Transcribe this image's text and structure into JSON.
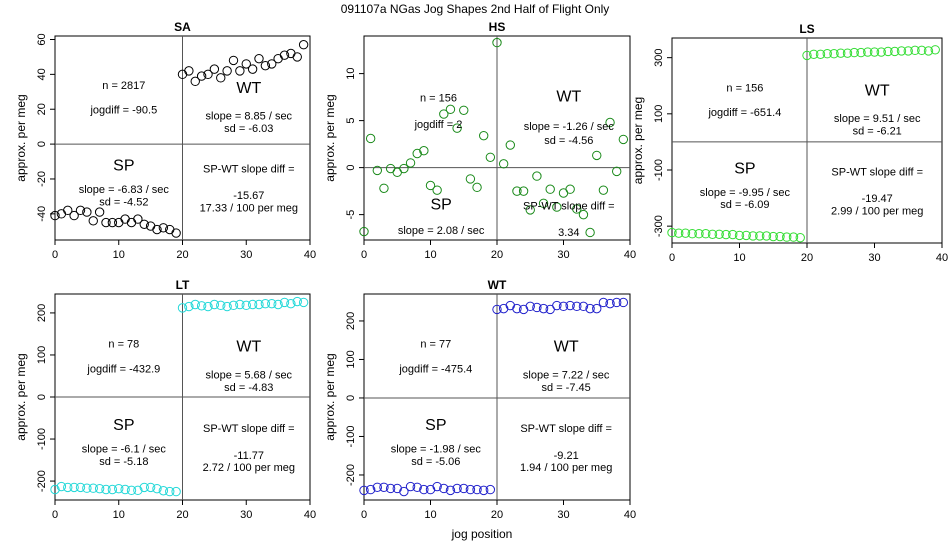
{
  "title": "091107a   NGas Jog Shapes 2nd Half of Flight Only",
  "xlabel": "jog position",
  "ylabel": "approx. per meg",
  "chart_data": [
    {
      "type": "scatter",
      "panel": "SA",
      "color": "#000000",
      "xlim": [
        0,
        40
      ],
      "ylim": [
        -55,
        62
      ],
      "xticks": [
        0,
        10,
        20,
        30,
        40
      ],
      "yticks": [
        -40,
        -20,
        0,
        20,
        40,
        60
      ],
      "x": [
        0,
        1,
        2,
        3,
        4,
        5,
        6,
        7,
        8,
        9,
        10,
        11,
        12,
        13,
        14,
        15,
        16,
        17,
        18,
        19,
        20,
        21,
        22,
        23,
        24,
        25,
        26,
        27,
        28,
        29,
        30,
        31,
        32,
        33,
        34,
        35,
        36,
        37,
        38,
        39
      ],
      "y": [
        -41,
        -40,
        -38,
        -41,
        -38,
        -39,
        -44,
        -39,
        -45,
        -45,
        -45,
        -43,
        -45,
        -43,
        -46,
        -47,
        -49,
        -48,
        -49,
        -51,
        40,
        42,
        36,
        39,
        40,
        43,
        38,
        42,
        48,
        42,
        46,
        43,
        49,
        45,
        46,
        49,
        51,
        52,
        50,
        57
      ],
      "labels": {
        "n": "n = 2817",
        "jogdiff": "jogdiff = -90.5",
        "wt": "WT",
        "wt_slope": "slope = 8.85 / sec",
        "wt_sd": "sd = -6.03",
        "sp": "SP",
        "sp_slope": "slope = -6.83 / sec",
        "sp_sd": "sd = -4.52",
        "diff_label": "SP-WT slope diff =",
        "diff_value": "-15.67",
        "per_meg": "17.33 / 100 per meg"
      }
    },
    {
      "type": "scatter",
      "panel": "HS",
      "color": "#1a8a1a",
      "xlim": [
        0,
        40
      ],
      "ylim": [
        -7.7,
        14
      ],
      "xticks": [
        0,
        10,
        20,
        30,
        40
      ],
      "yticks": [
        -5,
        0,
        5,
        10
      ],
      "x": [
        0,
        1,
        2,
        3,
        4,
        5,
        6,
        7,
        8,
        9,
        10,
        11,
        12,
        13,
        14,
        15,
        16,
        17,
        18,
        19,
        20,
        21,
        22,
        23,
        24,
        25,
        26,
        27,
        28,
        29,
        30,
        31,
        32,
        33,
        34,
        35,
        36,
        37,
        38,
        39
      ],
      "y": [
        -6.8,
        3.1,
        -0.3,
        -2.2,
        -0.1,
        -0.5,
        -0.1,
        0.5,
        1.5,
        1.8,
        -1.9,
        -2.4,
        5.7,
        6.2,
        4.2,
        6.1,
        -1.2,
        -2.1,
        3.4,
        1.1,
        13.3,
        0.4,
        2.4,
        -2.5,
        -2.5,
        -4.5,
        -0.9,
        -3.8,
        -2.3,
        -4.2,
        -2.7,
        -2.3,
        -4.4,
        -5.0,
        -6.9,
        1.3,
        -2.4,
        4.8,
        -0.4,
        3.0
      ],
      "labels": {
        "n": "n = 156",
        "jogdiff": "jogdiff = 2",
        "wt": "WT",
        "wt_slope": "slope = -1.26 / sec",
        "wt_sd": "sd = -4.56",
        "sp": "SP",
        "sp_slope": "slope = 2.08 / sec",
        "sp_sd": "",
        "diff_label": "SP-WT slope diff =",
        "diff_value": "3.34",
        "per_meg": ""
      }
    },
    {
      "type": "scatter",
      "panel": "LS",
      "color": "#33dd33",
      "xlim": [
        0,
        40
      ],
      "ylim": [
        -360,
        370
      ],
      "xticks": [
        0,
        10,
        20,
        30,
        40
      ],
      "yticks": [
        -300,
        -100,
        100,
        300
      ],
      "x": [
        0,
        1,
        2,
        3,
        4,
        5,
        6,
        7,
        8,
        9,
        10,
        11,
        12,
        13,
        14,
        15,
        16,
        17,
        18,
        19,
        20,
        21,
        22,
        23,
        24,
        25,
        26,
        27,
        28,
        29,
        30,
        31,
        32,
        33,
        34,
        35,
        36,
        37,
        38,
        39
      ],
      "y": [
        -323,
        -325,
        -325,
        -327,
        -327,
        -327,
        -329,
        -329,
        -330,
        -330,
        -333,
        -333,
        -335,
        -335,
        -335,
        -337,
        -337,
        -339,
        -339,
        -341,
        308,
        312,
        312,
        314,
        314,
        316,
        316,
        318,
        318,
        320,
        320,
        320,
        322,
        322,
        324,
        324,
        326,
        326,
        324,
        328
      ],
      "labels": {
        "n": "n = 156",
        "jogdiff": "jogdiff = -651.4",
        "wt": "WT",
        "wt_slope": "slope = 9.51 / sec",
        "wt_sd": "sd = -6.21",
        "sp": "SP",
        "sp_slope": "slope = -9.95 / sec",
        "sp_sd": "sd = -6.09",
        "diff_label": "SP-WT slope diff =",
        "diff_value": "-19.47",
        "per_meg": "2.99 / 100 per meg"
      }
    },
    {
      "type": "scatter",
      "panel": "LT",
      "color": "#22d8d8",
      "xlim": [
        0,
        40
      ],
      "ylim": [
        -245,
        245
      ],
      "xticks": [
        0,
        10,
        20,
        30,
        40
      ],
      "yticks": [
        -200,
        -100,
        0,
        100,
        200
      ],
      "x": [
        0,
        1,
        2,
        3,
        4,
        5,
        6,
        7,
        8,
        9,
        10,
        11,
        12,
        13,
        14,
        15,
        16,
        17,
        18,
        19,
        20,
        21,
        22,
        23,
        24,
        25,
        26,
        27,
        28,
        29,
        30,
        31,
        32,
        33,
        34,
        35,
        36,
        37,
        38,
        39
      ],
      "y": [
        -220,
        -213,
        -215,
        -215,
        -215,
        -217,
        -217,
        -218,
        -220,
        -220,
        -218,
        -220,
        -222,
        -222,
        -215,
        -215,
        -218,
        -223,
        -225,
        -225,
        212,
        215,
        220,
        217,
        215,
        220,
        218,
        215,
        218,
        220,
        218,
        220,
        220,
        222,
        222,
        220,
        225,
        222,
        227,
        225
      ],
      "labels": {
        "n": "n = 78",
        "jogdiff": "jogdiff = -432.9",
        "wt": "WT",
        "wt_slope": "slope = 5.68 / sec",
        "wt_sd": "sd = -4.83",
        "sp": "SP",
        "sp_slope": "slope = -6.1 / sec",
        "sp_sd": "sd = -5.18",
        "diff_label": "SP-WT slope diff =",
        "diff_value": "-11.77",
        "per_meg": "2.72 / 100 per meg"
      }
    },
    {
      "type": "scatter",
      "panel": "WT",
      "color": "#2222cc",
      "xlim": [
        0,
        40
      ],
      "ylim": [
        -265,
        270
      ],
      "xticks": [
        0,
        10,
        20,
        30,
        40
      ],
      "yticks": [
        -200,
        -100,
        0,
        100,
        200
      ],
      "x": [
        0,
        1,
        2,
        3,
        4,
        5,
        6,
        7,
        8,
        9,
        10,
        11,
        12,
        13,
        14,
        15,
        16,
        17,
        18,
        19,
        20,
        21,
        22,
        23,
        24,
        25,
        26,
        27,
        28,
        29,
        30,
        31,
        32,
        33,
        34,
        35,
        36,
        37,
        38,
        39
      ],
      "y": [
        -240,
        -238,
        -232,
        -232,
        -235,
        -235,
        -243,
        -230,
        -232,
        -238,
        -238,
        -230,
        -235,
        -240,
        -235,
        -235,
        -238,
        -238,
        -240,
        -238,
        230,
        232,
        240,
        232,
        230,
        238,
        235,
        232,
        230,
        240,
        238,
        240,
        238,
        238,
        232,
        232,
        248,
        245,
        248,
        248
      ],
      "labels": {
        "n": "n = 77",
        "jogdiff": "jogdiff = -475.4",
        "wt": "WT",
        "wt_slope": "slope = 7.22 / sec",
        "wt_sd": "sd = -7.45",
        "sp": "SP",
        "sp_slope": "slope = -1.98 / sec",
        "sp_sd": "sd = -5.06",
        "diff_label": "SP-WT slope diff =",
        "diff_value": "-9.21",
        "per_meg": "1.94 / 100 per meg"
      }
    }
  ]
}
